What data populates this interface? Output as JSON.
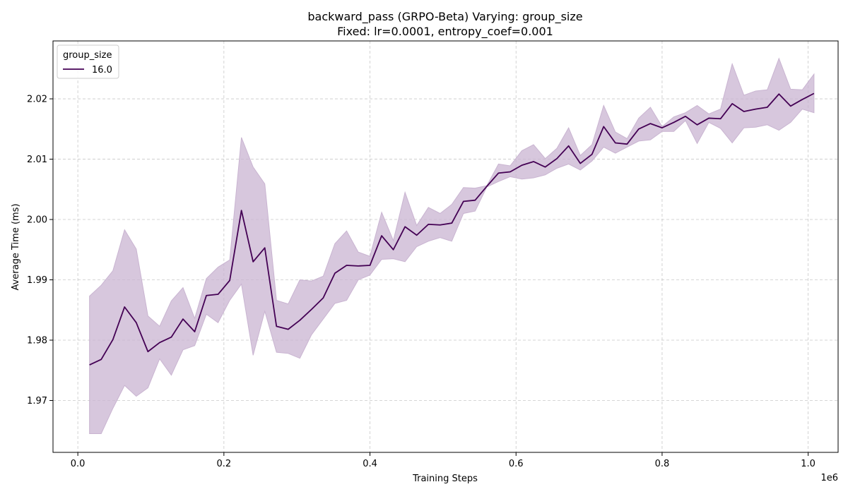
{
  "chart_data": {
    "type": "line",
    "title_line1": "backward_pass (GRPO-Beta) Varying: group_size",
    "title_line2": "Fixed: lr=0.0001, entropy_coef=0.001",
    "xlabel": "Training Steps",
    "ylabel": "Average Time (ms)",
    "x_offset_label": "1e6",
    "xlim": [
      -0.034,
      1.041
    ],
    "ylim": [
      1.9614,
      2.0296
    ],
    "x_ticks": [
      0.0,
      0.2,
      0.4,
      0.6,
      0.8,
      1.0
    ],
    "x_tick_labels": [
      "0.0",
      "0.2",
      "0.4",
      "0.6",
      "0.8",
      "1.0"
    ],
    "y_ticks": [
      1.97,
      1.98,
      1.99,
      2.0,
      2.01,
      2.02
    ],
    "y_tick_labels": [
      "1.97",
      "1.98",
      "1.99",
      "2.00",
      "2.01",
      "2.02"
    ],
    "grid": true,
    "legend_title": "group_size",
    "legend_placement": "top-left",
    "series": [
      {
        "name": "16.0",
        "color": "#440154",
        "band_color": "#c9b4d1",
        "x": [
          0.016,
          0.032,
          0.048,
          0.064,
          0.08,
          0.096,
          0.112,
          0.128,
          0.144,
          0.16,
          0.176,
          0.192,
          0.208,
          0.224,
          0.24,
          0.256,
          0.272,
          0.288,
          0.304,
          0.32,
          0.336,
          0.352,
          0.368,
          0.384,
          0.4,
          0.416,
          0.432,
          0.448,
          0.464,
          0.48,
          0.496,
          0.512,
          0.528,
          0.544,
          0.56,
          0.576,
          0.592,
          0.608,
          0.624,
          0.64,
          0.656,
          0.672,
          0.688,
          0.704,
          0.72,
          0.736,
          0.752,
          0.768,
          0.784,
          0.8,
          0.816,
          0.832,
          0.848,
          0.864,
          0.88,
          0.896,
          0.912,
          0.928,
          0.944,
          0.96,
          0.976,
          0.992,
          1.008
        ],
        "y": [
          1.9759,
          1.9768,
          1.9801,
          1.9855,
          1.9829,
          1.9781,
          1.9796,
          1.9805,
          1.9835,
          1.9814,
          1.9874,
          1.9876,
          1.9899,
          2.0015,
          1.993,
          1.9953,
          1.9823,
          1.9818,
          1.9833,
          1.9851,
          1.987,
          1.9911,
          1.9924,
          1.9923,
          1.9924,
          1.9973,
          1.995,
          1.9988,
          1.9974,
          1.9992,
          1.9991,
          1.9994,
          2.003,
          2.0032,
          2.0055,
          2.0077,
          2.0079,
          2.009,
          2.0096,
          2.0087,
          2.0101,
          2.0122,
          2.0093,
          2.0108,
          2.0154,
          2.0127,
          2.0125,
          2.015,
          2.0159,
          2.0152,
          2.0161,
          2.0171,
          2.0157,
          2.0168,
          2.0167,
          2.0192,
          2.0179,
          2.0183,
          2.0186,
          2.0208,
          2.0188,
          2.0199,
          2.0209
        ],
        "lower": [
          1.9645,
          1.9645,
          1.9687,
          1.9725,
          1.9707,
          1.9721,
          1.9769,
          1.9742,
          1.9784,
          1.9791,
          1.9843,
          1.9829,
          1.9866,
          1.9893,
          1.9775,
          1.9848,
          1.978,
          1.9778,
          1.977,
          1.9809,
          1.9835,
          1.9861,
          1.9866,
          1.99,
          1.9908,
          1.9934,
          1.9935,
          1.993,
          1.9955,
          1.9964,
          1.997,
          1.9964,
          2.001,
          2.0014,
          2.0054,
          2.0063,
          2.0071,
          2.0067,
          2.0069,
          2.0074,
          2.0085,
          2.0092,
          2.0082,
          2.0097,
          2.012,
          2.011,
          2.012,
          2.013,
          2.0132,
          2.0146,
          2.0146,
          2.0164,
          2.0126,
          2.0161,
          2.0151,
          2.0127,
          2.0152,
          2.0153,
          2.0157,
          2.0148,
          2.0161,
          2.0183,
          2.0177
        ],
        "upper": [
          1.9873,
          1.9891,
          1.9915,
          1.9983,
          1.9951,
          1.984,
          1.9823,
          1.9865,
          1.9887,
          1.9836,
          1.9902,
          1.9921,
          1.9933,
          2.0136,
          2.0087,
          2.0059,
          1.9866,
          1.986,
          1.99,
          1.9898,
          1.9906,
          1.996,
          1.9981,
          1.9946,
          1.9939,
          2.0012,
          1.9965,
          2.0045,
          1.999,
          2.002,
          2.001,
          2.0025,
          2.0053,
          2.0052,
          2.0056,
          2.0092,
          2.0089,
          2.0114,
          2.0124,
          2.0101,
          2.0118,
          2.0152,
          2.0106,
          2.0124,
          2.0189,
          2.0145,
          2.0134,
          2.0168,
          2.0186,
          2.0154,
          2.017,
          2.0177,
          2.0189,
          2.0175,
          2.0183,
          2.0258,
          2.0206,
          2.0213,
          2.0215,
          2.0267,
          2.0216,
          2.0215,
          2.0241
        ]
      }
    ]
  }
}
